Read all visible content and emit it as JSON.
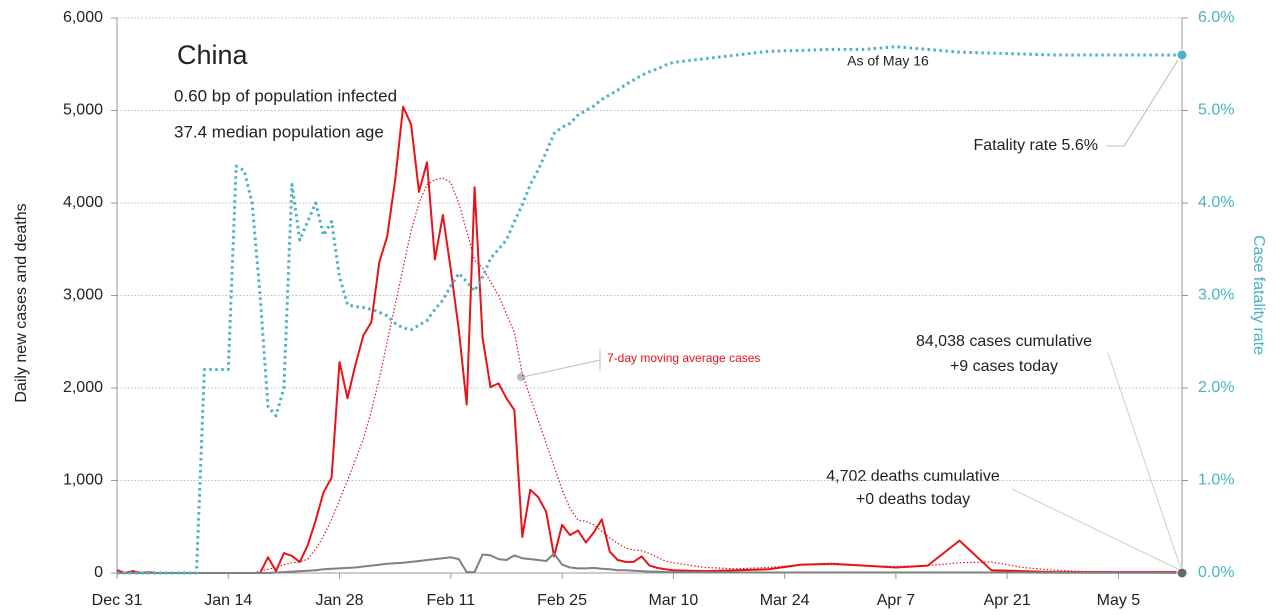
{
  "chart_data": {
    "type": "line",
    "annotations": [
      "China",
      "0.60 bp of population infected",
      "37.4 median population age",
      "As of May 16",
      "Fatality rate 5.6%",
      "7-day moving average cases",
      "84,038 cases cumulative",
      "+9 cases today",
      "4,702 deaths cumulative",
      "+0 deaths today"
    ],
    "y_label": "Daily new cases and deaths",
    "y2_label": "Case fatality rate",
    "x": [
      0,
      1,
      2,
      3,
      4,
      5,
      6,
      7,
      8,
      9,
      10,
      11,
      12,
      13,
      14,
      15,
      16,
      17,
      18,
      19,
      20,
      21,
      22,
      23,
      24,
      25,
      26,
      27,
      28,
      29,
      30,
      31,
      32,
      33,
      34,
      35,
      36,
      37,
      38,
      39,
      40,
      41,
      42,
      43,
      44,
      45,
      46,
      47,
      48,
      49,
      50,
      51,
      52,
      53,
      54,
      55,
      56,
      57,
      58,
      59,
      60,
      61,
      62,
      63,
      64,
      65,
      66,
      67,
      68,
      69,
      70,
      74,
      78,
      82,
      86,
      90,
      94,
      98,
      102,
      106,
      110,
      114,
      118,
      122,
      126,
      130,
      134
    ],
    "xlim": [
      0,
      134
    ],
    "xticks": [
      {
        "value": 0,
        "label": "Dec 31"
      },
      {
        "value": 14,
        "label": "Jan 14"
      },
      {
        "value": 28,
        "label": "Jan 28"
      },
      {
        "value": 42,
        "label": "Feb 11"
      },
      {
        "value": 56,
        "label": "Feb 25"
      },
      {
        "value": 70,
        "label": "Mar 10"
      },
      {
        "value": 84,
        "label": "Mar 24"
      },
      {
        "value": 98,
        "label": "Apr 7"
      },
      {
        "value": 112,
        "label": "Apr 21"
      },
      {
        "value": 126,
        "label": "May 5"
      }
    ],
    "ylim": [
      0,
      6000
    ],
    "yticks": [
      0,
      {
        "value": 1000,
        "label": "1,000"
      },
      {
        "value": 2000,
        "label": "2,000"
      },
      {
        "value": 3000,
        "label": "3,000"
      },
      {
        "value": 4000,
        "label": "4,000"
      },
      {
        "value": 5000,
        "label": "5,000"
      },
      {
        "value": 6000,
        "label": "6,000"
      }
    ],
    "y2lim": [
      0,
      6
    ],
    "y2ticks": [
      {
        "value": 0,
        "label": "0.0%"
      },
      {
        "value": 1,
        "label": "1.0%"
      },
      {
        "value": 2,
        "label": "2.0%"
      },
      {
        "value": 3,
        "label": "3.0%"
      },
      {
        "value": 4,
        "label": "4.0%"
      },
      {
        "value": 5,
        "label": "5.0%"
      },
      {
        "value": 6,
        "label": "6.0%"
      }
    ],
    "grid": true,
    "series": [
      {
        "color": "#e8131a",
        "style": "solid",
        "values": [
          30,
          0,
          20,
          0,
          10,
          0,
          0,
          0,
          0,
          0,
          0,
          0,
          0,
          0,
          0,
          0,
          0,
          0,
          0,
          170,
          20,
          215,
          185,
          120,
          300,
          570,
          875,
          1030,
          2280,
          1890,
          2250,
          2570,
          2710,
          3360,
          3640,
          4250,
          5040,
          4850,
          4120,
          4440,
          3390,
          3870,
          3280,
          2630,
          1820,
          4170,
          2540,
          2010,
          2050,
          1890,
          1760,
          390,
          900,
          820,
          660,
          180,
          520,
          410,
          460,
          330,
          440,
          580,
          230,
          140,
          120,
          120,
          180,
          80,
          55,
          40,
          30,
          20,
          30,
          40,
          90,
          100,
          80,
          60,
          80,
          350,
          30,
          20,
          10,
          10,
          10,
          10,
          10
        ]
      },
      {
        "color": "#e8131a",
        "style": "dotted",
        "values": [
          10,
          10,
          10,
          5,
          5,
          0,
          0,
          0,
          0,
          0,
          0,
          0,
          0,
          0,
          0,
          0,
          0,
          0,
          20,
          40,
          60,
          90,
          110,
          120,
          150,
          260,
          400,
          580,
          790,
          1000,
          1220,
          1450,
          1750,
          2100,
          2500,
          2900,
          3300,
          3700,
          4000,
          4200,
          4250,
          4270,
          4220,
          4000,
          3700,
          3380,
          3300,
          3150,
          3000,
          2800,
          2600,
          2150,
          1900,
          1650,
          1400,
          1150,
          900,
          700,
          570,
          560,
          520,
          450,
          380,
          320,
          270,
          250,
          240,
          210,
          170,
          130,
          110,
          60,
          45,
          60,
          90,
          90,
          80,
          70,
          80,
          110,
          120,
          60,
          30,
          15,
          10,
          10,
          10
        ]
      },
      {
        "color": "#808080",
        "style": "solid",
        "values": [
          0,
          0,
          0,
          0,
          0,
          0,
          0,
          0,
          0,
          0,
          0,
          0,
          0,
          0,
          0,
          0,
          0,
          0,
          0,
          0,
          5,
          10,
          15,
          20,
          25,
          30,
          40,
          45,
          50,
          55,
          60,
          70,
          80,
          90,
          100,
          105,
          110,
          120,
          130,
          140,
          150,
          160,
          170,
          150,
          10,
          10,
          200,
          190,
          150,
          140,
          190,
          160,
          150,
          140,
          130,
          210,
          90,
          60,
          50,
          50,
          55,
          45,
          40,
          30,
          30,
          25,
          20,
          15,
          15,
          10,
          10,
          8,
          6,
          5,
          5,
          5,
          5,
          5,
          5,
          5,
          5,
          5,
          3,
          3,
          3,
          3,
          0
        ]
      },
      {
        "color": "#4ab3c4",
        "style": "dotted",
        "axis": "y2",
        "values": [
          0,
          0,
          0,
          0,
          0,
          0,
          0,
          0,
          0,
          0,
          0,
          2.2,
          2.2,
          2.2,
          2.2,
          4.4,
          4.35,
          4.0,
          3.0,
          1.8,
          1.7,
          2.0,
          4.2,
          3.6,
          3.8,
          4.0,
          3.65,
          3.8,
          3.2,
          2.9,
          2.88,
          2.87,
          2.85,
          2.82,
          2.78,
          2.7,
          2.65,
          2.63,
          2.68,
          2.73,
          2.85,
          2.95,
          3.1,
          3.24,
          3.15,
          3.05,
          3.2,
          3.4,
          3.5,
          3.6,
          3.8,
          3.98,
          4.2,
          4.36,
          4.55,
          4.75,
          4.82,
          4.86,
          4.95,
          5.0,
          5.05,
          5.12,
          5.17,
          5.22,
          5.28,
          5.33,
          5.38,
          5.42,
          5.45,
          5.49,
          5.52,
          5.56,
          5.6,
          5.64,
          5.65,
          5.66,
          5.66,
          5.69,
          5.66,
          5.63,
          5.62,
          5.61,
          5.6,
          5.6,
          5.6,
          5.6,
          5.6
        ]
      }
    ]
  }
}
